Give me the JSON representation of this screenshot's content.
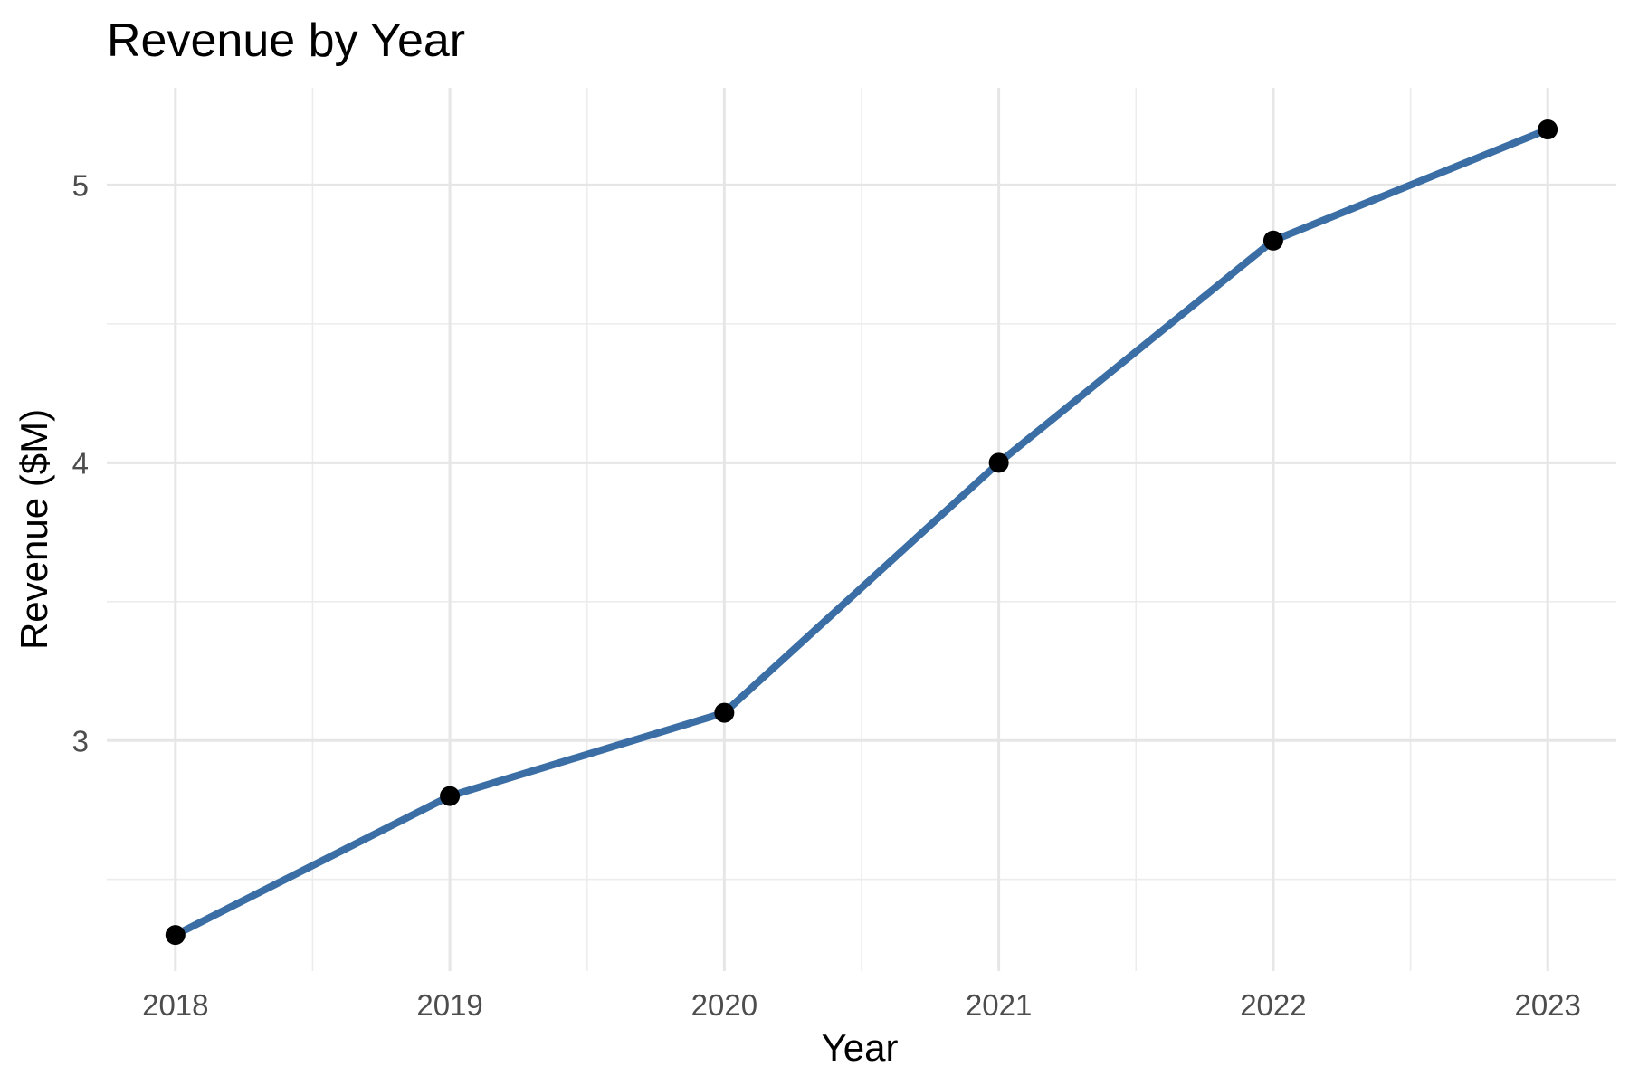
{
  "colors": {
    "line": "#3a6ea5",
    "point": "#000000",
    "background": "#ffffff",
    "grid": "#e6e6e6",
    "tick_text": "#4d4d4d"
  },
  "chart_data": {
    "type": "line",
    "title": "Revenue by Year",
    "xlabel": "Year",
    "ylabel": "Revenue ($M)",
    "x": [
      2018,
      2019,
      2020,
      2021,
      2022,
      2023
    ],
    "series": [
      {
        "values": [
          2.3,
          2.8,
          3.1,
          4.0,
          4.8,
          5.2
        ]
      }
    ],
    "x_ticks": [
      "2018",
      "2019",
      "2020",
      "2021",
      "2022",
      "2023"
    ],
    "y_ticks": [
      "3",
      "4",
      "5"
    ],
    "xlim": [
      2017.75,
      2023.25
    ],
    "ylim": [
      2.17,
      5.35
    ],
    "grid": true,
    "legend": "none",
    "markers": true
  }
}
